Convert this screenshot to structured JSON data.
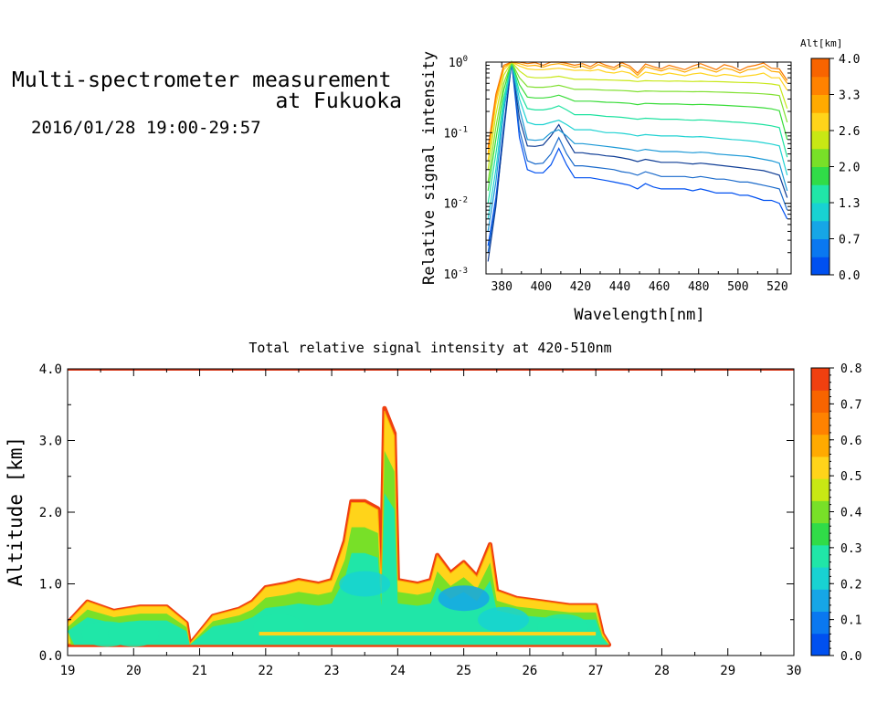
{
  "header": {
    "title_line1": "Multi-spectrometer measurement",
    "title_line2": "at Fukuoka",
    "period": "2016/01/28 19:00-29:57"
  },
  "chart_data": [
    {
      "type": "line",
      "title": "",
      "xlabel": "Wavelength[nm]",
      "ylabel": "Relative signal intensity",
      "y_scale": "log",
      "xlim": [
        372,
        527
      ],
      "ylim": [
        0.001,
        1
      ],
      "x_ticks": [
        380,
        400,
        420,
        440,
        460,
        480,
        500,
        520
      ],
      "y_ticks": [
        {
          "base": "10",
          "exp": "0"
        },
        {
          "base": "10",
          "exp": "-1"
        },
        {
          "base": "10",
          "exp": "-2"
        },
        {
          "base": "10",
          "exp": "-3"
        }
      ],
      "legend": {
        "title": "Alt[km]",
        "placement": "right colorbar",
        "tick_labels": [
          "4.0",
          "3.3",
          "2.6",
          "2.0",
          "1.3",
          "0.7",
          "0.0"
        ],
        "colors": [
          "#0050f0",
          "#0a78f0",
          "#16a6e6",
          "#18d2d2",
          "#20e6a8",
          "#30dc48",
          "#78e028",
          "#c8e814",
          "#ffd41a",
          "#ffaa00",
          "#ff8200",
          "#f86400"
        ]
      },
      "x": [
        373,
        377,
        381,
        385,
        389,
        393,
        397,
        401,
        405,
        409,
        413,
        417,
        421,
        425,
        429,
        433,
        437,
        441,
        445,
        449,
        453,
        457,
        461,
        465,
        469,
        473,
        477,
        481,
        485,
        489,
        493,
        497,
        501,
        505,
        509,
        513,
        517,
        521,
        525
      ],
      "series": [
        {
          "color": "#0050f0",
          "values": [
            0.0025,
            0.012,
            0.12,
            1.0,
            0.085,
            0.03,
            0.027,
            0.027,
            0.035,
            0.06,
            0.035,
            0.023,
            0.023,
            0.023,
            0.022,
            0.021,
            0.02,
            0.019,
            0.018,
            0.016,
            0.019,
            0.017,
            0.016,
            0.016,
            0.016,
            0.016,
            0.015,
            0.016,
            0.015,
            0.014,
            0.014,
            0.014,
            0.013,
            0.013,
            0.012,
            0.011,
            0.011,
            0.01,
            0.006
          ]
        },
        {
          "color": "#1a6acb",
          "values": [
            0.002,
            0.01,
            0.1,
            1.0,
            0.11,
            0.04,
            0.036,
            0.037,
            0.05,
            0.085,
            0.05,
            0.034,
            0.034,
            0.033,
            0.032,
            0.031,
            0.03,
            0.028,
            0.027,
            0.025,
            0.028,
            0.026,
            0.024,
            0.024,
            0.024,
            0.024,
            0.023,
            0.024,
            0.023,
            0.022,
            0.022,
            0.021,
            0.02,
            0.02,
            0.019,
            0.018,
            0.017,
            0.016,
            0.008
          ]
        },
        {
          "color": "#0f3d95",
          "values": [
            0.0015,
            0.009,
            0.11,
            1.0,
            0.16,
            0.065,
            0.064,
            0.067,
            0.09,
            0.13,
            0.08,
            0.052,
            0.052,
            0.05,
            0.049,
            0.047,
            0.046,
            0.044,
            0.042,
            0.039,
            0.042,
            0.04,
            0.038,
            0.038,
            0.038,
            0.037,
            0.036,
            0.037,
            0.036,
            0.035,
            0.034,
            0.033,
            0.032,
            0.031,
            0.03,
            0.029,
            0.027,
            0.025,
            0.012
          ]
        },
        {
          "color": "#1a98d6",
          "values": [
            0.004,
            0.02,
            0.2,
            1.0,
            0.22,
            0.08,
            0.078,
            0.08,
            0.1,
            0.11,
            0.09,
            0.07,
            0.07,
            0.068,
            0.066,
            0.064,
            0.062,
            0.06,
            0.058,
            0.055,
            0.058,
            0.056,
            0.054,
            0.054,
            0.054,
            0.053,
            0.052,
            0.053,
            0.052,
            0.05,
            0.049,
            0.048,
            0.047,
            0.046,
            0.044,
            0.042,
            0.04,
            0.037,
            0.015
          ]
        },
        {
          "color": "#20d2d2",
          "values": [
            0.006,
            0.03,
            0.25,
            1.0,
            0.3,
            0.14,
            0.13,
            0.13,
            0.14,
            0.15,
            0.13,
            0.11,
            0.11,
            0.11,
            0.105,
            0.1,
            0.1,
            0.098,
            0.095,
            0.09,
            0.094,
            0.092,
            0.09,
            0.09,
            0.09,
            0.088,
            0.087,
            0.088,
            0.086,
            0.084,
            0.082,
            0.08,
            0.079,
            0.077,
            0.075,
            0.072,
            0.069,
            0.065,
            0.025
          ]
        },
        {
          "color": "#1ee2a0",
          "values": [
            0.01,
            0.05,
            0.3,
            1.0,
            0.38,
            0.22,
            0.21,
            0.21,
            0.22,
            0.24,
            0.21,
            0.18,
            0.18,
            0.18,
            0.175,
            0.17,
            0.168,
            0.165,
            0.16,
            0.155,
            0.16,
            0.158,
            0.155,
            0.155,
            0.155,
            0.152,
            0.15,
            0.152,
            0.15,
            0.147,
            0.145,
            0.142,
            0.14,
            0.137,
            0.134,
            0.13,
            0.125,
            0.118,
            0.045
          ]
        },
        {
          "color": "#38dc38",
          "values": [
            0.015,
            0.08,
            0.4,
            1.0,
            0.48,
            0.32,
            0.31,
            0.31,
            0.32,
            0.34,
            0.31,
            0.28,
            0.28,
            0.28,
            0.275,
            0.27,
            0.268,
            0.265,
            0.26,
            0.25,
            0.26,
            0.258,
            0.255,
            0.255,
            0.255,
            0.252,
            0.25,
            0.252,
            0.25,
            0.247,
            0.244,
            0.24,
            0.237,
            0.234,
            0.23,
            0.225,
            0.218,
            0.205,
            0.08
          ]
        },
        {
          "color": "#80e030",
          "values": [
            0.02,
            0.12,
            0.5,
            1.0,
            0.6,
            0.45,
            0.44,
            0.44,
            0.45,
            0.47,
            0.44,
            0.41,
            0.41,
            0.41,
            0.405,
            0.4,
            0.398,
            0.395,
            0.39,
            0.38,
            0.39,
            0.388,
            0.385,
            0.385,
            0.385,
            0.382,
            0.38,
            0.382,
            0.38,
            0.377,
            0.374,
            0.37,
            0.367,
            0.364,
            0.36,
            0.355,
            0.348,
            0.335,
            0.14
          ]
        },
        {
          "color": "#c8e818",
          "values": [
            0.03,
            0.18,
            0.65,
            1.0,
            0.75,
            0.62,
            0.6,
            0.6,
            0.61,
            0.63,
            0.6,
            0.57,
            0.57,
            0.57,
            0.56,
            0.56,
            0.555,
            0.55,
            0.545,
            0.53,
            0.545,
            0.54,
            0.54,
            0.535,
            0.54,
            0.535,
            0.53,
            0.535,
            0.53,
            0.528,
            0.525,
            0.52,
            0.515,
            0.512,
            0.508,
            0.5,
            0.49,
            0.47,
            0.22
          ]
        },
        {
          "color": "#ffd420",
          "values": [
            0.04,
            0.25,
            0.78,
            1.0,
            0.88,
            0.8,
            0.78,
            0.78,
            0.8,
            0.82,
            0.79,
            0.76,
            0.77,
            0.75,
            0.78,
            0.72,
            0.7,
            0.74,
            0.7,
            0.6,
            0.72,
            0.69,
            0.66,
            0.7,
            0.67,
            0.64,
            0.68,
            0.7,
            0.66,
            0.63,
            0.67,
            0.65,
            0.62,
            0.64,
            0.66,
            0.7,
            0.6,
            0.6,
            0.4
          ]
        },
        {
          "color": "#ffaa00",
          "values": [
            0.05,
            0.3,
            0.85,
            1.0,
            0.95,
            0.88,
            0.9,
            0.85,
            0.92,
            0.95,
            0.9,
            0.84,
            0.88,
            0.8,
            0.92,
            0.85,
            0.78,
            0.9,
            0.82,
            0.65,
            0.86,
            0.8,
            0.75,
            0.82,
            0.78,
            0.72,
            0.8,
            0.85,
            0.78,
            0.72,
            0.82,
            0.78,
            0.7,
            0.78,
            0.8,
            0.88,
            0.74,
            0.72,
            0.5
          ]
        },
        {
          "color": "#f87800",
          "values": [
            0.06,
            0.35,
            0.9,
            1.0,
            1.0,
            0.95,
            0.98,
            0.9,
            1.0,
            1.0,
            0.96,
            0.9,
            0.95,
            0.86,
            1.0,
            0.9,
            0.84,
            0.98,
            0.88,
            0.7,
            0.94,
            0.86,
            0.8,
            0.9,
            0.84,
            0.78,
            0.88,
            0.95,
            0.86,
            0.78,
            0.92,
            0.86,
            0.76,
            0.86,
            0.9,
            0.97,
            0.82,
            0.8,
            0.55
          ]
        }
      ]
    },
    {
      "type": "heatmap",
      "title": "Total relative signal intensity at 420-510nm",
      "xlabel": "",
      "ylabel": "Altitude [km]",
      "xlim": [
        19,
        30
      ],
      "ylim": [
        0,
        4
      ],
      "x_ticks": [
        "19",
        "20",
        "21",
        "22",
        "23",
        "24",
        "25",
        "26",
        "27",
        "28",
        "29",
        "30"
      ],
      "y_ticks": [
        "0.0",
        "1.0",
        "2.0",
        "3.0",
        "4.0"
      ],
      "colorbar": {
        "range": [
          0,
          0.8
        ],
        "tick_labels": [
          "0.8",
          "0.7",
          "0.6",
          "0.5",
          "0.4",
          "0.3",
          "0.2",
          "0.1",
          "0.0"
        ],
        "colors": [
          "#0050f0",
          "#0a78f0",
          "#16a6e6",
          "#18d2d2",
          "#20e6a8",
          "#30dc48",
          "#78e028",
          "#c8e814",
          "#ffd41a",
          "#ffaa00",
          "#ff8200",
          "#f86400",
          "#f04010"
        ]
      },
      "cloud_top_km": [
        [
          19.0,
          0.45
        ],
        [
          19.3,
          0.75
        ],
        [
          19.7,
          0.62
        ],
        [
          20.1,
          0.68
        ],
        [
          20.5,
          0.68
        ],
        [
          20.8,
          0.45
        ],
        [
          20.85,
          0.15
        ],
        [
          21.2,
          0.55
        ],
        [
          21.6,
          0.65
        ],
        [
          21.8,
          0.75
        ],
        [
          22.0,
          0.95
        ],
        [
          22.3,
          1.0
        ],
        [
          22.5,
          1.05
        ],
        [
          22.8,
          1.0
        ],
        [
          23.0,
          1.05
        ],
        [
          23.2,
          1.6
        ],
        [
          23.3,
          2.15
        ],
        [
          23.5,
          2.15
        ],
        [
          23.7,
          2.05
        ],
        [
          23.75,
          1.0
        ],
        [
          23.8,
          3.45
        ],
        [
          23.95,
          3.1
        ],
        [
          24.0,
          1.05
        ],
        [
          24.3,
          1.0
        ],
        [
          24.5,
          1.05
        ],
        [
          24.6,
          1.4
        ],
        [
          24.8,
          1.15
        ],
        [
          25.0,
          1.3
        ],
        [
          25.2,
          1.1
        ],
        [
          25.4,
          1.55
        ],
        [
          25.5,
          0.9
        ],
        [
          25.8,
          0.8
        ],
        [
          26.2,
          0.75
        ],
        [
          26.6,
          0.7
        ],
        [
          27.0,
          0.7
        ],
        [
          27.1,
          0.3
        ],
        [
          27.2,
          0.15
        ]
      ],
      "core_intensity": [
        {
          "time": 19.6,
          "km": 0.3,
          "value": 0.3
        },
        {
          "time": 20.0,
          "km": 0.3,
          "value": 0.3
        },
        {
          "time": 22.2,
          "km": 0.4,
          "value": 0.25
        },
        {
          "time": 23.5,
          "km": 1.0,
          "value": 0.2
        },
        {
          "time": 25.0,
          "km": 0.8,
          "value": 0.15
        },
        {
          "time": 25.6,
          "km": 0.5,
          "value": 0.2
        },
        {
          "time": 26.5,
          "km": 0.4,
          "value": 0.25
        }
      ]
    }
  ]
}
